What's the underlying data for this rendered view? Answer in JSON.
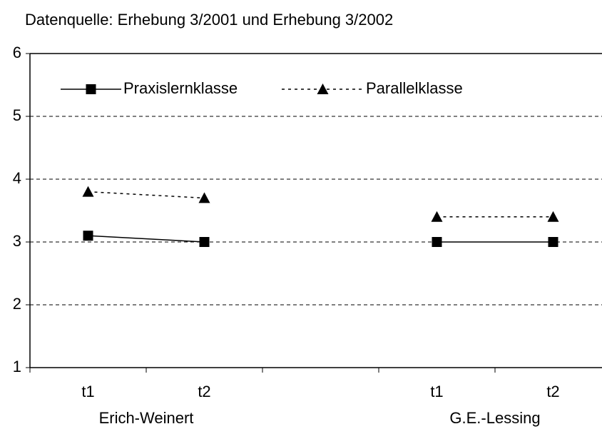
{
  "chart_data": {
    "type": "line",
    "subtitle": "Datenquelle: Erhebung 3/2001 und Erhebung 3/2002",
    "categories": [
      "t1",
      "t2",
      null,
      "t1",
      "t2"
    ],
    "group_labels": [
      "Erich-Weinert",
      "G.E.-Lessing"
    ],
    "series": [
      {
        "name": "Praxislernklasse",
        "color": "#000000",
        "line_style": "solid",
        "marker": "square",
        "values": [
          3.1,
          3.0,
          null,
          3.0,
          3.0
        ]
      },
      {
        "name": "Parallelklasse",
        "color": "#000000",
        "line_style": "dashed",
        "marker": "triangle",
        "values": [
          3.8,
          3.7,
          null,
          3.4,
          3.4
        ]
      }
    ],
    "ylim": [
      1,
      6
    ],
    "yticks": [
      1,
      2,
      3,
      4,
      5,
      6
    ],
    "grid": true,
    "legend_position": "top-left"
  }
}
